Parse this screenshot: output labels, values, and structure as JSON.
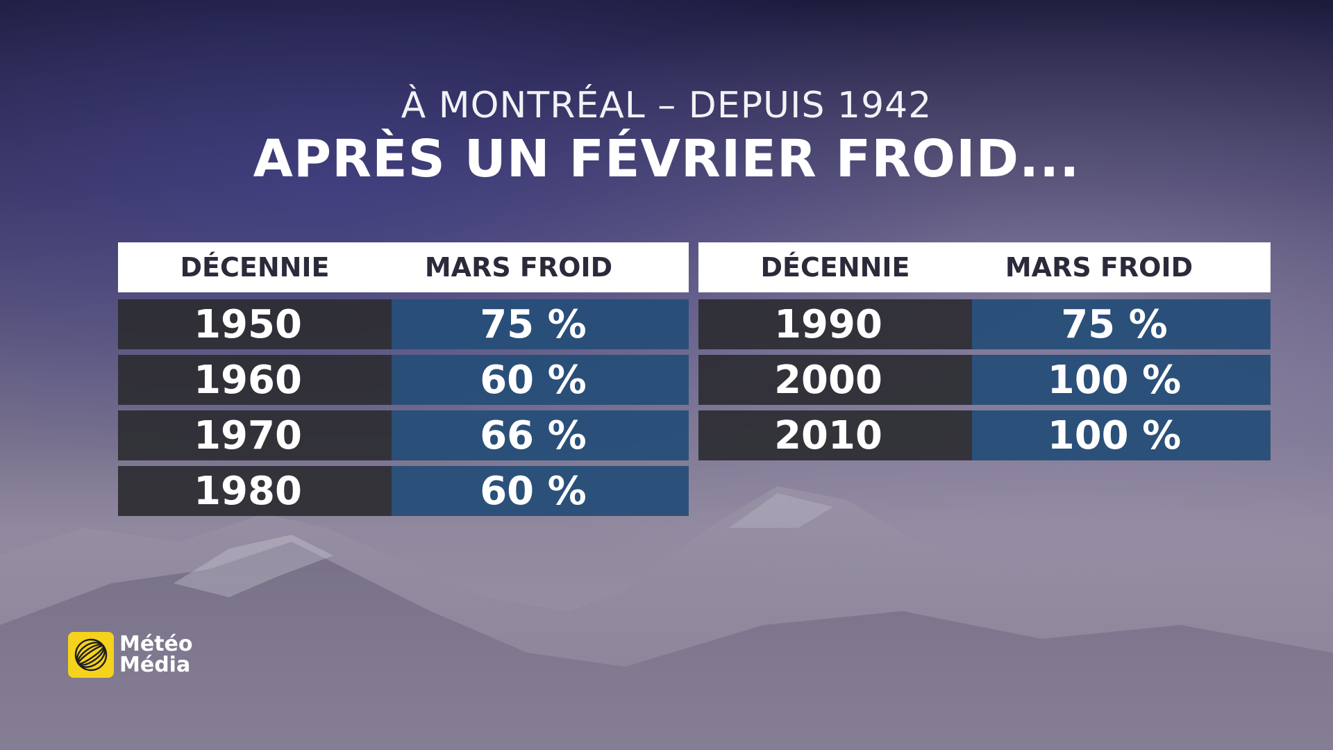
{
  "header": {
    "subtitle": "À MONTRÉAL – DEPUIS 1942",
    "title": "APRÈS UN FÉVRIER FROID..."
  },
  "tables": {
    "left": {
      "col_decade": "DÉCENNIE",
      "col_value": "MARS FROID",
      "rows": [
        {
          "decade": "1950",
          "value": "75 %"
        },
        {
          "decade": "1960",
          "value": "60 %"
        },
        {
          "decade": "1970",
          "value": "66 %"
        },
        {
          "decade": "1980",
          "value": "60 %"
        }
      ]
    },
    "right": {
      "col_decade": "DÉCENNIE",
      "col_value": "MARS FROID",
      "rows": [
        {
          "decade": "1990",
          "value": "75 %"
        },
        {
          "decade": "2000",
          "value": "100 %"
        },
        {
          "decade": "2010",
          "value": "100 %"
        }
      ]
    }
  },
  "logo": {
    "line1": "Météo",
    "line2": "Média",
    "icon": "globe-icon",
    "color": "#f5d21c"
  },
  "colors": {
    "decade_cell": "#2d2d32",
    "value_cell": "#264e78"
  }
}
